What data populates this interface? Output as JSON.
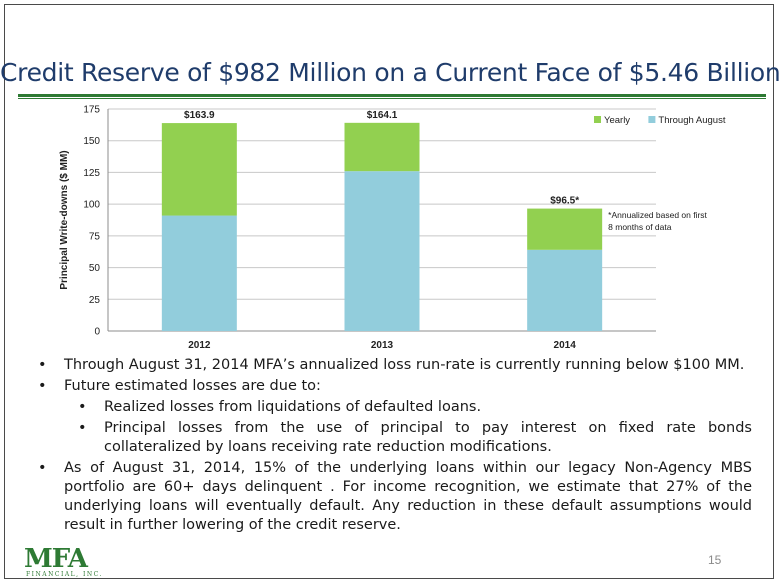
{
  "slide": {
    "title": "Credit Reserve of $982 Million on a Current Face of $5.46 Billion",
    "page_number": "15"
  },
  "logo": {
    "name": "MFA",
    "subtitle": "FINANCIAL, INC."
  },
  "chart_data": {
    "type": "bar",
    "stacked": true,
    "categories": [
      "2012",
      "2013",
      "2014"
    ],
    "series": [
      {
        "name": "Through August",
        "values": [
          91,
          126,
          64
        ],
        "color": "#92cddc"
      },
      {
        "name": "Yearly",
        "values": [
          72.9,
          38.1,
          32.5
        ],
        "color": "#92d050"
      }
    ],
    "totals_labels": [
      "$163.9",
      "$164.1",
      "$96.5*"
    ],
    "ylabel": "Principal Write-downs ($ MM)",
    "xlabel": "",
    "ylim": [
      0,
      175
    ],
    "yticks": [
      0,
      25,
      50,
      75,
      100,
      125,
      150,
      175
    ],
    "grid": true,
    "legend_position": "top-right",
    "annotation": {
      "line1": "*Annualized based on first",
      "line2": "8 months of data"
    }
  },
  "bullets": [
    {
      "level": 1,
      "text": "Through August 31, 2014 MFA’s annualized loss run-rate is currently running below $100 MM."
    },
    {
      "level": 1,
      "text": "Future estimated losses are due to:"
    },
    {
      "level": 2,
      "text": "Realized losses from liquidations of defaulted loans."
    },
    {
      "level": 2,
      "text": "Principal losses from the use of principal to pay interest on fixed rate bonds collateralized by loans receiving rate reduction modifications."
    },
    {
      "level": 1,
      "text": "As of August 31, 2014, 15% of the underlying loans within our legacy Non-Agency MBS portfolio are 60+ days delinquent . For income recognition, we estimate that 27% of the underlying loans will eventually default. Any reduction in these default assumptions would result in further lowering of the credit reserve."
    }
  ],
  "bullet_glyph": "•"
}
